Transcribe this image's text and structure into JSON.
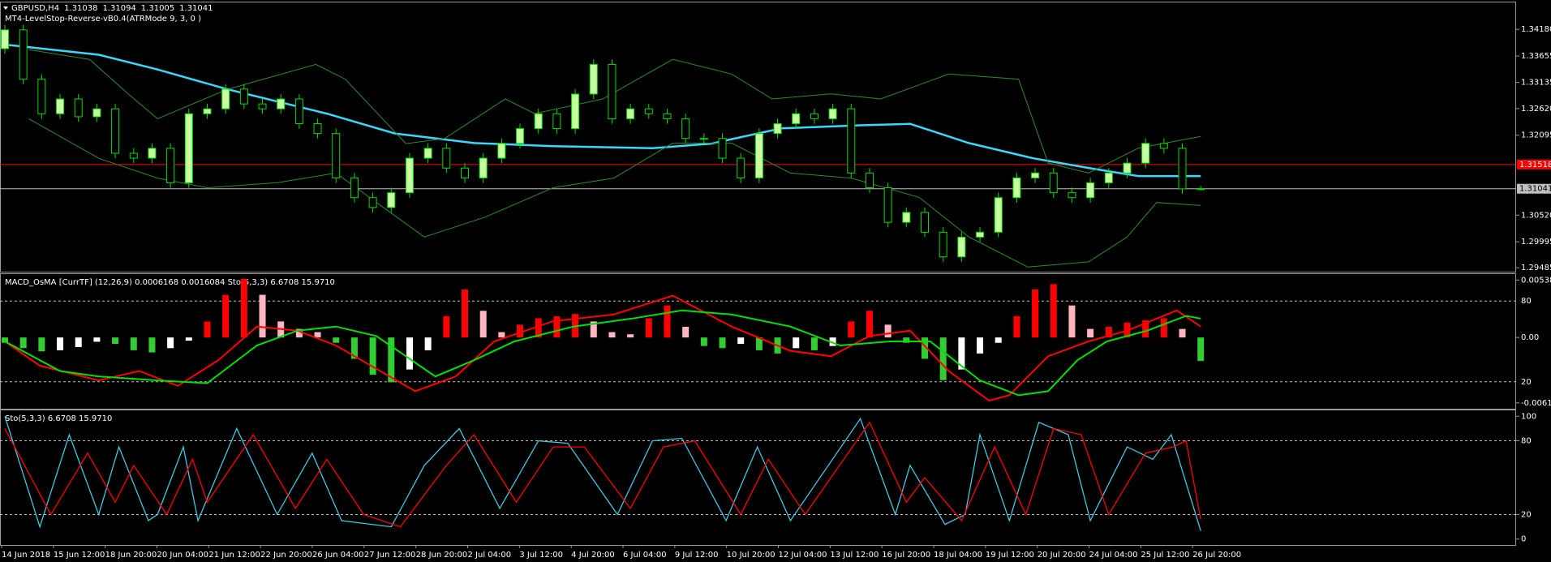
{
  "chart_data": [
    {
      "type": "candlestick",
      "title": "GBPUSD,H4",
      "subtitle": "MT4-LevelStop-Reverse-vB0.4(ATRMode 9, 3, 0 )",
      "open": [
        1.338,
        1.3417,
        1.33198,
        1.32518,
        1.32809,
        1.32459,
        1.32615,
        1.3174,
        1.31643,
        1.31837,
        1.31157,
        1.32518,
        1.32615,
        1.33004,
        1.32712,
        1.32615,
        1.32809,
        1.32323,
        1.32129,
        1.31254,
        1.30865,
        1.30671,
        1.30962,
        1.31643,
        1.31837,
        1.31448,
        1.31254,
        1.31643,
        1.31934,
        1.32226,
        1.32518,
        1.32226,
        1.32906,
        1.3349,
        1.3242,
        1.32615,
        1.32518,
        1.3242,
        1.32032,
        1.32032,
        1.31643,
        1.31254,
        1.32129,
        1.32323,
        1.32518,
        1.3242,
        1.32615,
        1.31351,
        1.3106,
        1.30379,
        1.30574,
        1.30185,
        1.29699,
        1.30088,
        1.30185,
        1.30865,
        1.31254,
        1.31351,
        1.30962,
        1.30865,
        1.31157,
        1.31351,
        1.31546,
        1.31934,
        1.31837,
        1.31038
      ],
      "high": [
        1.3427,
        1.3427,
        1.33298,
        1.32909,
        1.32909,
        1.32715,
        1.32715,
        1.3184,
        1.31937,
        1.31937,
        1.32618,
        1.32715,
        1.33104,
        1.33104,
        1.32812,
        1.32909,
        1.32909,
        1.32423,
        1.32229,
        1.31354,
        1.30965,
        1.31062,
        1.31743,
        1.31937,
        1.31937,
        1.31548,
        1.31743,
        1.32034,
        1.32326,
        1.32618,
        1.32618,
        1.33006,
        1.3359,
        1.3359,
        1.32715,
        1.32715,
        1.32618,
        1.3252,
        1.32132,
        1.32132,
        1.31743,
        1.32229,
        1.32423,
        1.32618,
        1.32618,
        1.32715,
        1.32715,
        1.31451,
        1.3116,
        1.30674,
        1.30674,
        1.30285,
        1.30188,
        1.30285,
        1.30965,
        1.31354,
        1.31451,
        1.31451,
        1.31062,
        1.31257,
        1.31451,
        1.31646,
        1.32034,
        1.32034,
        1.31937,
        1.31094
      ],
      "low": [
        1.337,
        1.33098,
        1.32418,
        1.32418,
        1.32359,
        1.32359,
        1.3164,
        1.31543,
        1.31543,
        1.31057,
        1.31057,
        1.32418,
        1.32515,
        1.32612,
        1.32515,
        1.32515,
        1.32223,
        1.32029,
        1.31154,
        1.30765,
        1.30571,
        1.30571,
        1.30862,
        1.31543,
        1.31348,
        1.31154,
        1.31154,
        1.31543,
        1.31834,
        1.32126,
        1.32126,
        1.32126,
        1.32806,
        1.3232,
        1.3232,
        1.32418,
        1.3232,
        1.31932,
        1.31932,
        1.31543,
        1.31154,
        1.31154,
        1.32029,
        1.32223,
        1.3232,
        1.3232,
        1.31251,
        1.3096,
        1.30279,
        1.30279,
        1.30085,
        1.29599,
        1.29599,
        1.29988,
        1.30085,
        1.30765,
        1.31154,
        1.30862,
        1.30765,
        1.30765,
        1.31057,
        1.31251,
        1.31446,
        1.31737,
        1.30938,
        1.31005
      ],
      "close": [
        1.3417,
        1.33198,
        1.32518,
        1.32809,
        1.32459,
        1.32615,
        1.3174,
        1.31643,
        1.31837,
        1.31157,
        1.32518,
        1.32615,
        1.33004,
        1.32712,
        1.32615,
        1.32809,
        1.32323,
        1.32129,
        1.31254,
        1.30865,
        1.30671,
        1.30962,
        1.31643,
        1.31837,
        1.31448,
        1.31254,
        1.31643,
        1.31934,
        1.32226,
        1.32518,
        1.32226,
        1.32906,
        1.3349,
        1.3242,
        1.32615,
        1.32518,
        1.3242,
        1.32032,
        1.32032,
        1.31643,
        1.31254,
        1.32129,
        1.32323,
        1.32518,
        1.3242,
        1.32615,
        1.31351,
        1.3106,
        1.30379,
        1.30574,
        1.30185,
        1.29699,
        1.30088,
        1.30185,
        1.30865,
        1.31254,
        1.31351,
        1.30962,
        1.30865,
        1.31157,
        1.31351,
        1.31546,
        1.31934,
        1.31837,
        1.31038,
        1.31041
      ],
      "up_color": "#c8ffa0",
      "down_color": "#000000",
      "wick_color": "#00dd00",
      "lines": [
        {
          "x": [
            0,
            5.1,
            8.3,
            12.1,
            17.5,
            21.2,
            25.5,
            29.8,
            35.2,
            38.4,
            42.2,
            46.5,
            49.2,
            52.4,
            55.9,
            58.9,
            61.6,
            65
          ],
          "values": [
            1.3388,
            1.3368,
            1.3339,
            1.33,
            1.3252,
            1.3213,
            1.3194,
            1.3188,
            1.3184,
            1.3193,
            1.3223,
            1.3229,
            1.3232,
            1.3194,
            1.3164,
            1.3145,
            1.3129,
            1.3129
          ],
          "color": "#3ad7ff",
          "width": 2.5
        },
        {
          "x": [
            1.3,
            4.6,
            6.7,
            8.3,
            12.1,
            16.9,
            18.5,
            21.8,
            23.9,
            27.2,
            28.8,
            32.5,
            36.3,
            39.5,
            41.7,
            44.9,
            47.6,
            51.3,
            55.1,
            56.7,
            58.9,
            61.6,
            65
          ],
          "values": [
            1.3378,
            1.3359,
            1.3291,
            1.3242,
            1.33,
            1.3349,
            1.332,
            1.3193,
            1.3203,
            1.3281,
            1.3252,
            1.3281,
            1.3359,
            1.333,
            1.3281,
            1.3291,
            1.3281,
            1.333,
            1.332,
            1.3155,
            1.3135,
            1.3184,
            1.3207
          ],
          "color": "#2e8b2e",
          "width": 1
        },
        {
          "x": [
            1.3,
            5.1,
            8.3,
            11,
            14.8,
            18,
            20.2,
            22.8,
            26.1,
            29.8,
            33.1,
            36.3,
            39.5,
            42.7,
            46,
            49.7,
            52.4,
            55.6,
            58.9,
            61,
            62.6,
            65
          ],
          "values": [
            1.3242,
            1.3164,
            1.3125,
            1.3106,
            1.3116,
            1.3135,
            1.3077,
            1.3009,
            1.3048,
            1.3106,
            1.3125,
            1.3194,
            1.3194,
            1.3135,
            1.3125,
            1.3087,
            1.3009,
            1.295,
            1.296,
            1.3009,
            1.3077,
            1.3071
          ],
          "color": "#2e8b2e",
          "width": 1
        }
      ],
      "levels": [
        {
          "value": 1.31518,
          "color": "#ff0000",
          "text_color": "#ffffff"
        },
        {
          "value": 1.31041,
          "color": "#c0c0c0",
          "text_color": "#000000"
        }
      ],
      "ylim": [
        1.29407,
        1.34695
      ],
      "yticks": [
        {
          "value": 1.3418,
          "label": "1.34180"
        },
        1.33655,
        1.33135,
        {
          "value": 1.3262,
          "label": "1.32620"
        },
        1.32095,
        {
          "value": 1.3052,
          "label": "1.30520"
        },
        1.29995,
        1.29485
      ]
    },
    {
      "type": "macd",
      "title": "MACD_OsMA [CurrTF] (12,26,9) 0.0006168 0.0016084  Sto(5,3,3) 6.6708 15.9710",
      "values": [
        -0.0005,
        -0.001,
        -0.0013,
        -0.0012,
        -0.0009,
        -0.0004,
        -0.0006,
        -0.0012,
        -0.0014,
        -0.001,
        -0.0003,
        0.0015,
        0.004,
        0.0055,
        0.004,
        0.0015,
        0.0008,
        0.0005,
        -0.0005,
        -0.002,
        -0.0035,
        -0.0042,
        -0.003,
        -0.0012,
        0.002,
        0.0045,
        0.0025,
        0.0005,
        0.0012,
        0.0018,
        0.002,
        0.0022,
        0.0015,
        0.0005,
        0.0003,
        0.0018,
        0.003,
        0.001,
        -0.0008,
        -0.001,
        -0.0006,
        -0.0012,
        -0.0015,
        -0.001,
        -0.0012,
        -0.0008,
        0.0015,
        0.0025,
        0.0012,
        -0.0005,
        -0.002,
        -0.004,
        -0.003,
        -0.0015,
        -0.0005,
        0.002,
        0.0045,
        0.005,
        0.003,
        0.0008,
        0.001,
        0.0014,
        0.0016,
        0.0018,
        0.0008,
        -0.0022
      ],
      "colors": {
        "pos_up": "#ff0000",
        "pos_down": "#ffb6c1",
        "neg_down": "#32cd32",
        "neg_up": "#ffffff"
      },
      "lines": [
        {
          "x": [
            0,
            1.9,
            5.1,
            7.3,
            9.4,
            11.6,
            13.7,
            15.9,
            18,
            22.3,
            24.5,
            26.6,
            29.8,
            33.1,
            36.3,
            39.5,
            42.7,
            44.9,
            47,
            49.2,
            51.3,
            53.5,
            54.6,
            56.7,
            58.9,
            61,
            63.7,
            65
          ],
          "values": [
            50,
            32,
            21,
            28,
            17,
            36,
            61,
            58,
            47,
            13,
            24,
            50,
            65,
            70,
            84,
            61,
            43,
            39,
            54,
            58,
            28,
            6,
            10,
            39,
            50,
            58,
            73,
            61
          ],
          "color": "#ff0000",
          "axis": "y2"
        },
        {
          "x": [
            0,
            3,
            5.1,
            8.3,
            11,
            13.7,
            15.9,
            18,
            20.2,
            23.4,
            25.5,
            27.7,
            30.9,
            34.1,
            36.8,
            39.5,
            42.7,
            45.4,
            48.1,
            50.3,
            53,
            55.1,
            56.7,
            58.3,
            59.9,
            62.1,
            64.2,
            65
          ],
          "values": [
            50,
            28,
            24,
            21,
            19,
            47,
            58,
            61,
            54,
            24,
            36,
            50,
            61,
            67,
            73,
            70,
            61,
            47,
            50,
            50,
            21,
            10,
            13,
            36,
            50,
            58,
            69,
            67
          ],
          "color": "#00e000",
          "axis": "y2"
        }
      ],
      "ylim": [
        -0.00668,
        0.00594
      ],
      "yticks": [
        0.005383,
        {
          "value": 0,
          "label": "0.00"
        },
        {
          "value": -0.00613,
          "label": "-0.006130"
        }
      ],
      "y2lim": [
        0,
        100
      ],
      "y2ticks": [
        80,
        20
      ]
    },
    {
      "type": "line",
      "title": "Sto(5,3,3) 6.6708 15.9710",
      "series": [
        {
          "x": [
            0,
            1.9,
            3.5,
            5.1,
            6.2,
            7.8,
            8.3,
            9.7,
            10.5,
            12.6,
            14.8,
            16.7,
            18.3,
            21,
            22.8,
            24.7,
            26.9,
            29,
            30.6,
            33.3,
            35.2,
            36.8,
            39.2,
            40.9,
            42.7,
            46.5,
            48.4,
            49.2,
            51.1,
            52.2,
            53,
            54.6,
            56.2,
            57.8,
            59,
            61,
            62.4,
            63.4,
            65
          ],
          "values": [
            100,
            10,
            85,
            20,
            75,
            15,
            20,
            75,
            15,
            90,
            20,
            70,
            15,
            10,
            60,
            90,
            25,
            80,
            78,
            20,
            80,
            82,
            15,
            75,
            15,
            98,
            20,
            60,
            12,
            20,
            85,
            15,
            95,
            85,
            15,
            75,
            65,
            85,
            6.6708
          ],
          "color": "#40c8e0"
        },
        {
          "x": [
            0,
            2.5,
            4.5,
            6,
            7,
            8.8,
            10.2,
            11,
            13.5,
            15.8,
            17.5,
            19.5,
            21.5,
            24,
            25.5,
            27.8,
            29.8,
            31.5,
            34,
            35.8,
            37.5,
            40,
            41.5,
            43.5,
            47,
            49,
            50,
            52,
            53.8,
            55.5,
            57,
            58.5,
            60,
            62,
            63.5,
            64.2,
            65
          ],
          "values": [
            90,
            20,
            70,
            30,
            60,
            20,
            65,
            30,
            85,
            25,
            65,
            20,
            10,
            60,
            85,
            30,
            75,
            75,
            25,
            75,
            80,
            20,
            65,
            20,
            95,
            30,
            50,
            15,
            75,
            20,
            90,
            85,
            20,
            70,
            75,
            80,
            15.971
          ],
          "color": "#ff0000"
        }
      ],
      "levels": [
        80,
        20
      ],
      "ylim": [
        -4.8,
        104.8
      ],
      "yticks": [
        100,
        80,
        20,
        0
      ],
      "x_labels": [
        "14 Jun 2018",
        "15 Jun 12:00",
        "18 Jun 20:00",
        "20 Jun 04:00",
        "21 Jun 12:00",
        "22 Jun 20:00",
        "26 Jun 04:00",
        "27 Jun 12:00",
        "28 Jun 20:00",
        "2 Jul 04:00",
        "3 Jul 12:00",
        "4 Jul 20:00",
        "6 Jul 04:00",
        "9 Jul 12:00",
        "10 Jul 20:00",
        "12 Jul 04:00",
        "13 Jul 12:00",
        "16 Jul 20:00",
        "18 Jul 04:00",
        "19 Jul 12:00",
        "20 Jul 20:00",
        "24 Jul 04:00",
        "25 Jul 12:00",
        "26 Jul 20:00"
      ]
    }
  ]
}
